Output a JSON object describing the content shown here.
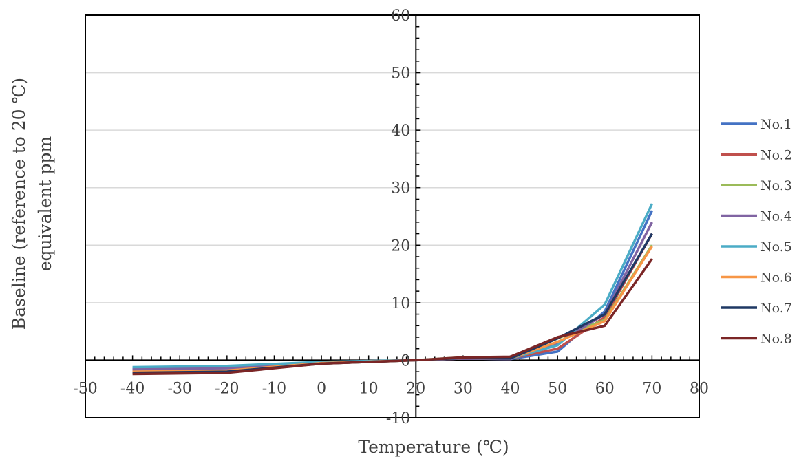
{
  "chart_data": {
    "type": "line",
    "title": "",
    "xlabel": "Temperature (℃)",
    "ylabel_lines": [
      "Baseline (reference to 20 ℃)",
      "equivalent ppm"
    ],
    "xlim": [
      -50,
      80
    ],
    "ylim": [
      -10,
      60
    ],
    "x_ticks": [
      -50,
      -40,
      -30,
      -20,
      -10,
      0,
      10,
      20,
      30,
      40,
      50,
      60,
      70,
      80
    ],
    "y_ticks": [
      -10,
      0,
      10,
      20,
      30,
      40,
      50,
      60
    ],
    "x_tick_labels": [
      "-50",
      "-40",
      "-30",
      "-20",
      "-10",
      "0",
      "10",
      "20",
      "30",
      "40",
      "50",
      "60",
      "70",
      "80"
    ],
    "y_tick_labels": [
      "-10",
      "0",
      "10",
      "20",
      "30",
      "40",
      "50",
      "60"
    ],
    "grid": "horizontal",
    "legend_position": "right",
    "x": [
      -40,
      -20,
      0,
      20,
      30,
      40,
      50,
      60,
      70
    ],
    "series": [
      {
        "name": "No.1",
        "color": "#4472C4",
        "values": [
          -1.5,
          -1.3,
          -0.5,
          0,
          0.3,
          0.2,
          1.5,
          8.5,
          26.0
        ]
      },
      {
        "name": "No.2",
        "color": "#C0504D",
        "values": [
          -2.0,
          -1.8,
          -0.6,
          0,
          0.3,
          0.3,
          2.0,
          7.5,
          22.0
        ]
      },
      {
        "name": "No.3",
        "color": "#9BBB59",
        "values": [
          -2.2,
          -2.1,
          -0.6,
          0,
          0.5,
          0.4,
          3.8,
          7.0,
          20.0
        ]
      },
      {
        "name": "No.4",
        "color": "#8064A2",
        "values": [
          -1.6,
          -1.4,
          -0.4,
          0,
          0.3,
          0.2,
          3.0,
          8.0,
          24.0
        ]
      },
      {
        "name": "No.5",
        "color": "#4BACC6",
        "values": [
          -1.2,
          -1.0,
          -0.3,
          0,
          0.4,
          0.3,
          2.6,
          9.7,
          27.2
        ]
      },
      {
        "name": "No.6",
        "color": "#F79646",
        "values": [
          -2.0,
          -1.8,
          -0.5,
          0,
          0.4,
          0.3,
          3.2,
          6.8,
          19.8
        ]
      },
      {
        "name": "No.7",
        "color": "#1F3864",
        "values": [
          -2.2,
          -2.0,
          -0.6,
          0,
          0.4,
          0.3,
          3.8,
          8.0,
          22.0
        ]
      },
      {
        "name": "No.8",
        "color": "#7B2626",
        "values": [
          -2.4,
          -2.2,
          -0.6,
          0,
          0.5,
          0.6,
          4.0,
          6.0,
          17.6
        ]
      }
    ]
  }
}
